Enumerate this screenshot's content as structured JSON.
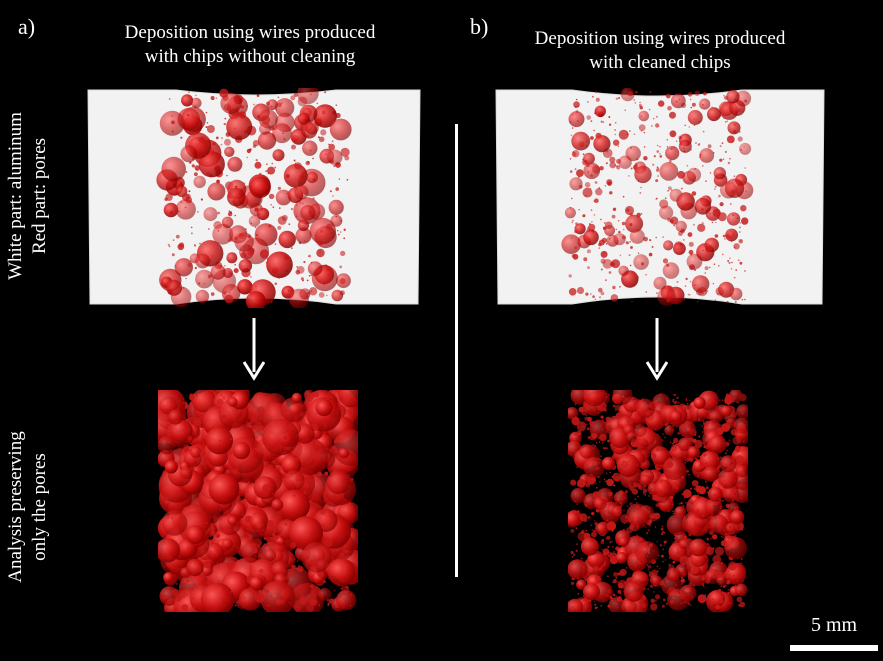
{
  "panel_a": {
    "letter": "a)",
    "title": "Deposition using wires produced\nwith chips without cleaning"
  },
  "panel_b": {
    "letter": "b)",
    "title": "Deposition using wires produced\nwith cleaned chips"
  },
  "row_labels": {
    "top": "White part: aluminum\nRed part: pores",
    "bottom": "Analysis preserving\nonly the pores"
  },
  "scale_bar": {
    "label": "5 mm"
  },
  "colors": {
    "background": "#000000",
    "aluminum": "#f2f2f2",
    "pore_red": "#d81818",
    "text": "#ffffff"
  }
}
